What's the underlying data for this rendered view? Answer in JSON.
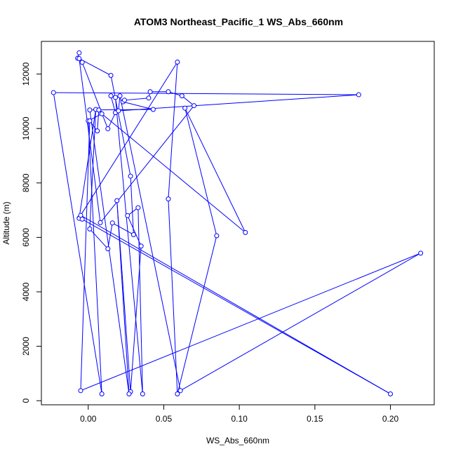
{
  "chart_data": {
    "type": "scatter",
    "title": "ATOM3 Northeast_Pacific_1 WS_Abs_660nm",
    "xlabel": "WS_Abs_660nm",
    "ylabel": "Altitude (m)",
    "xlim": [
      -0.031,
      0.229
    ],
    "ylim": [
      -150,
      13200
    ],
    "x_ticks": [
      0.0,
      0.05,
      0.1,
      0.15,
      0.2
    ],
    "x_tick_labels": [
      "0.00",
      "0.05",
      "0.10",
      "0.15",
      "0.20"
    ],
    "y_ticks": [
      0,
      2000,
      4000,
      6000,
      8000,
      10000,
      12000
    ],
    "y_tick_labels": [
      "0",
      "2000",
      "4000",
      "6000",
      "8000",
      "10000",
      "12000"
    ],
    "grid": false,
    "color": "#0000ff",
    "series": [
      {
        "points": [
          [
            -0.006,
            12780
          ],
          [
            -0.007,
            12580
          ],
          [
            -0.004,
            12430
          ],
          [
            0.013,
            9990
          ],
          [
            0.018,
            10580
          ],
          [
            0.015,
            11200
          ],
          [
            0.018,
            11140
          ],
          [
            0.036,
            250
          ],
          [
            0.033,
            7090
          ],
          [
            0.026,
            6800
          ],
          [
            0.035,
            5680
          ],
          [
            0.028,
            330
          ],
          [
            0.019,
            7350
          ],
          [
            0.027,
            250
          ],
          [
            0.001,
            10680
          ],
          [
            0.043,
            10700
          ],
          [
            0.023,
            10980
          ],
          [
            0.024,
            11040
          ],
          [
            0.04,
            11120
          ],
          [
            0.041,
            11350
          ],
          [
            0.053,
            11350
          ],
          [
            0.062,
            11200
          ],
          [
            0.07,
            10840
          ],
          [
            0.008,
            6540
          ],
          [
            -0.006,
            12570
          ],
          [
            0.015,
            11950
          ],
          [
            0.028,
            8250
          ],
          [
            0.03,
            6100
          ],
          [
            0.016,
            6530
          ],
          [
            0.013,
            5580
          ],
          [
            0.001,
            6310
          ],
          [
            0.005,
            10700
          ],
          [
            -0.006,
            6710
          ],
          [
            -0.006,
            6700
          ],
          [
            -0.004,
            6670
          ],
          [
            0.2,
            250
          ],
          [
            -0.005,
            6810
          ],
          [
            0.059,
            12440
          ],
          [
            0.053,
            7410
          ],
          [
            0.059,
            250
          ],
          [
            0.085,
            6060
          ],
          [
            0.064,
            10750
          ],
          [
            0.104,
            6180
          ],
          [
            0.009,
            10540
          ],
          [
            0.0,
            10280
          ],
          [
            0.009,
            250
          ],
          [
            -0.023,
            11320
          ],
          [
            0.179,
            11240
          ],
          [
            0.02,
            10650
          ],
          [
            0.021,
            11200
          ],
          [
            0.061,
            370
          ],
          [
            0.22,
            5420
          ],
          [
            -0.005,
            370
          ],
          [
            0.001,
            10280
          ],
          [
            0.006,
            9910
          ],
          [
            0.007,
            10680
          ]
        ]
      }
    ]
  }
}
